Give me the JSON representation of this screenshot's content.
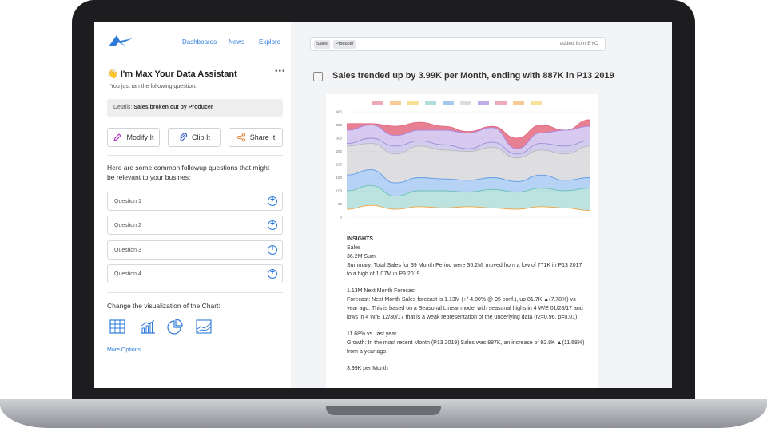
{
  "nav": {
    "dashboards": "Dashboards",
    "news": "News",
    "explore": "Explore"
  },
  "assistant": {
    "title": "👋 I'm Max Your Data Assistant",
    "menu": "•••",
    "ran_text": "You just ran the following question:",
    "details_label": "Details:",
    "details_value": "Sales broken out by Producer"
  },
  "actions": {
    "modify": "Modify It",
    "clip": "Clip It",
    "share": "Share It"
  },
  "followup_text": "Here are some common followup questions that might be relevant to your busines:",
  "questions": [
    "Question 1",
    "Question 2",
    "Question 3",
    "Question 4"
  ],
  "viz": {
    "label": "Change the visualization of the Chart:",
    "more": "More Options"
  },
  "search": {
    "tags": [
      "Sales",
      "Producer"
    ],
    "source": "added from BYO"
  },
  "headline": "Sales trended up by 3.99K per Month, ending with 887K in P13 2019",
  "chart_data": {
    "type": "area",
    "legend_position": "top",
    "legend_colors": [
      "#e8869a",
      "#f3b565",
      "#f3d36b",
      "#8fd0cd",
      "#7fb0e6",
      "#cfcfd2",
      "#a887e0",
      "#e8869a",
      "#f3b565",
      "#f3d36b"
    ],
    "y_ticks": [
      "400",
      "350",
      "300",
      "250",
      "200",
      "150",
      "100",
      "50",
      "0"
    ],
    "ylim": [
      0,
      400
    ],
    "series": [
      {
        "color": "#e36a80",
        "values": [
          355,
          355,
          345,
          360,
          345,
          325,
          345,
          300,
          350,
          330,
          370
        ]
      },
      {
        "color": "#a887e0",
        "values": [
          330,
          350,
          310,
          330,
          330,
          320,
          340,
          260,
          320,
          330,
          345
        ]
      },
      {
        "color": "#9b8fd6",
        "values": [
          280,
          300,
          270,
          290,
          275,
          260,
          285,
          240,
          280,
          270,
          290
        ]
      },
      {
        "color": "#b9b9bd",
        "values": [
          270,
          280,
          240,
          270,
          255,
          250,
          265,
          225,
          255,
          240,
          270
        ]
      },
      {
        "color": "#5e9be6",
        "values": [
          160,
          180,
          130,
          150,
          145,
          140,
          150,
          135,
          160,
          140,
          150
        ]
      },
      {
        "color": "#6cc1ba",
        "values": [
          100,
          120,
          80,
          100,
          100,
          95,
          105,
          95,
          110,
          100,
          110
        ]
      },
      {
        "color": "#f0a243",
        "values": [
          30,
          45,
          30,
          40,
          35,
          40,
          35,
          30,
          40,
          35,
          25
        ]
      }
    ]
  },
  "insights": {
    "title": "INSIGHTS",
    "metric": "Sales",
    "sum": "36.2M Sum",
    "summary": "Summary: Total Sales for 39 Month Period were 36.2M, moved from a low of 771K in P13 2017 to a high of 1.07M in P9 2019.",
    "forecast_title": "1.13M Next Month Forecast",
    "forecast": "Forecast: Next Month Sales forecast is 1.13M (+/-4.80% @ 95 conf.), up 81.7K ▲(7.78%) vs year ago. This is based on a Seasonal Linear model with seasonal highs in 4 W/E 01/28/17 and lows in 4 W/E 12/30/17 that is a weak representation of the underlying data (r2=0.96, p=0.01).",
    "growth_title": "11.68% vs. last year",
    "growth": "Growth: In the most recent Month (P13 2019) Sales was 887K, an increase of 92.8K ▲(11.68%) from a year ago.",
    "trend_title": "3.99K per Month"
  }
}
